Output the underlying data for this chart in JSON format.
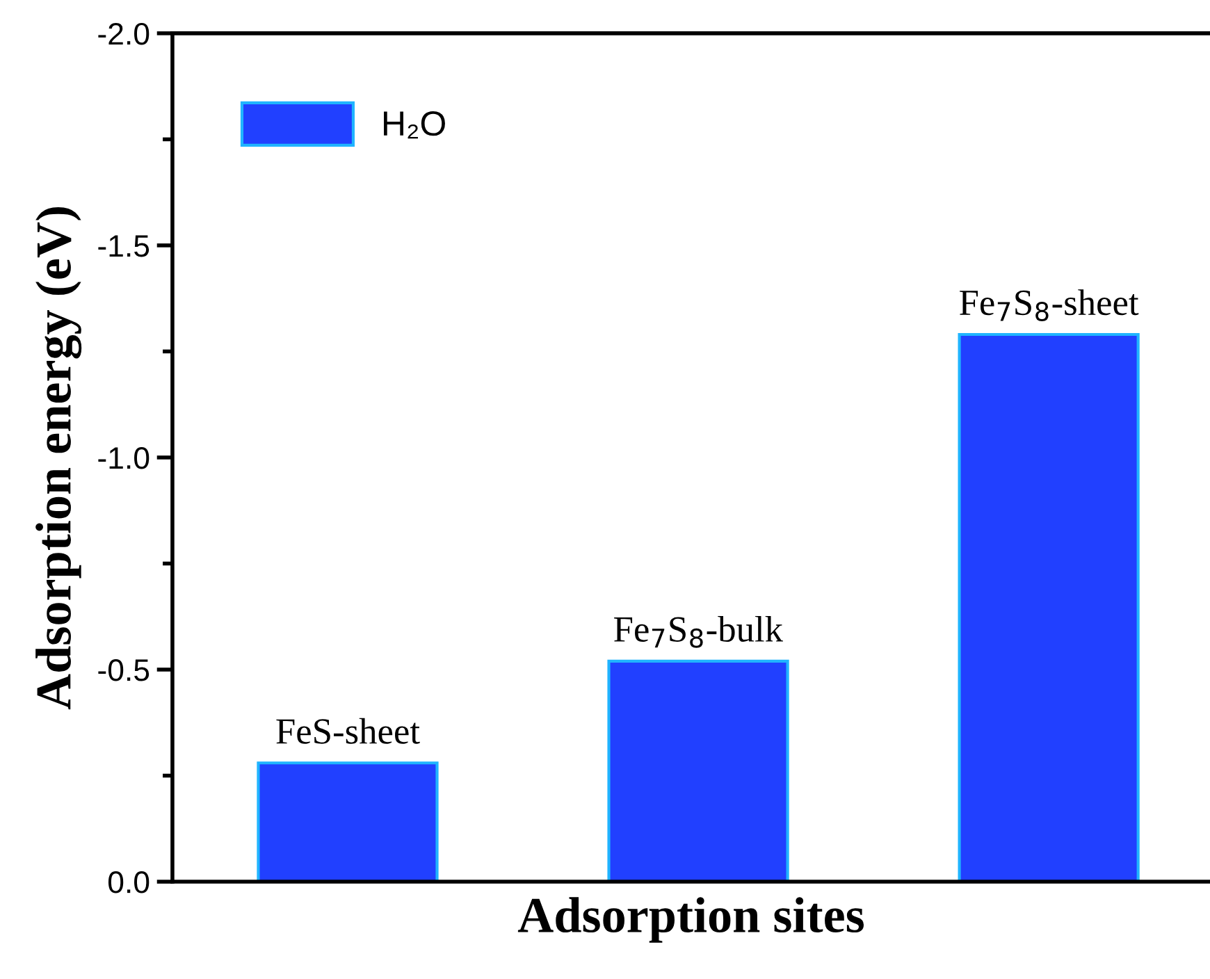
{
  "chart_data": {
    "type": "bar",
    "xlabel": "Adsorption sites",
    "ylabel": "Adsorption energy (eV)",
    "categories": [
      "FeS-sheet",
      "Fe$_{7}$S$_{8}$-bulk",
      "Fe$_{7}$S$_{8}$-sheet"
    ],
    "series": [
      {
        "name": "H₂O",
        "color": "#2140ff",
        "values": [
          -0.28,
          -0.52,
          -1.29
        ]
      }
    ],
    "ylim": [
      0,
      -2.0
    ],
    "yticks": [
      {
        "value": 0,
        "label": "0.0"
      },
      -0.5,
      {
        "value": -1.0,
        "label": "-1.0"
      },
      -1.5,
      {
        "value": -2.0,
        "label": "-2.0"
      }
    ],
    "tick_labels": "y",
    "grid": false,
    "legend": "top left"
  }
}
